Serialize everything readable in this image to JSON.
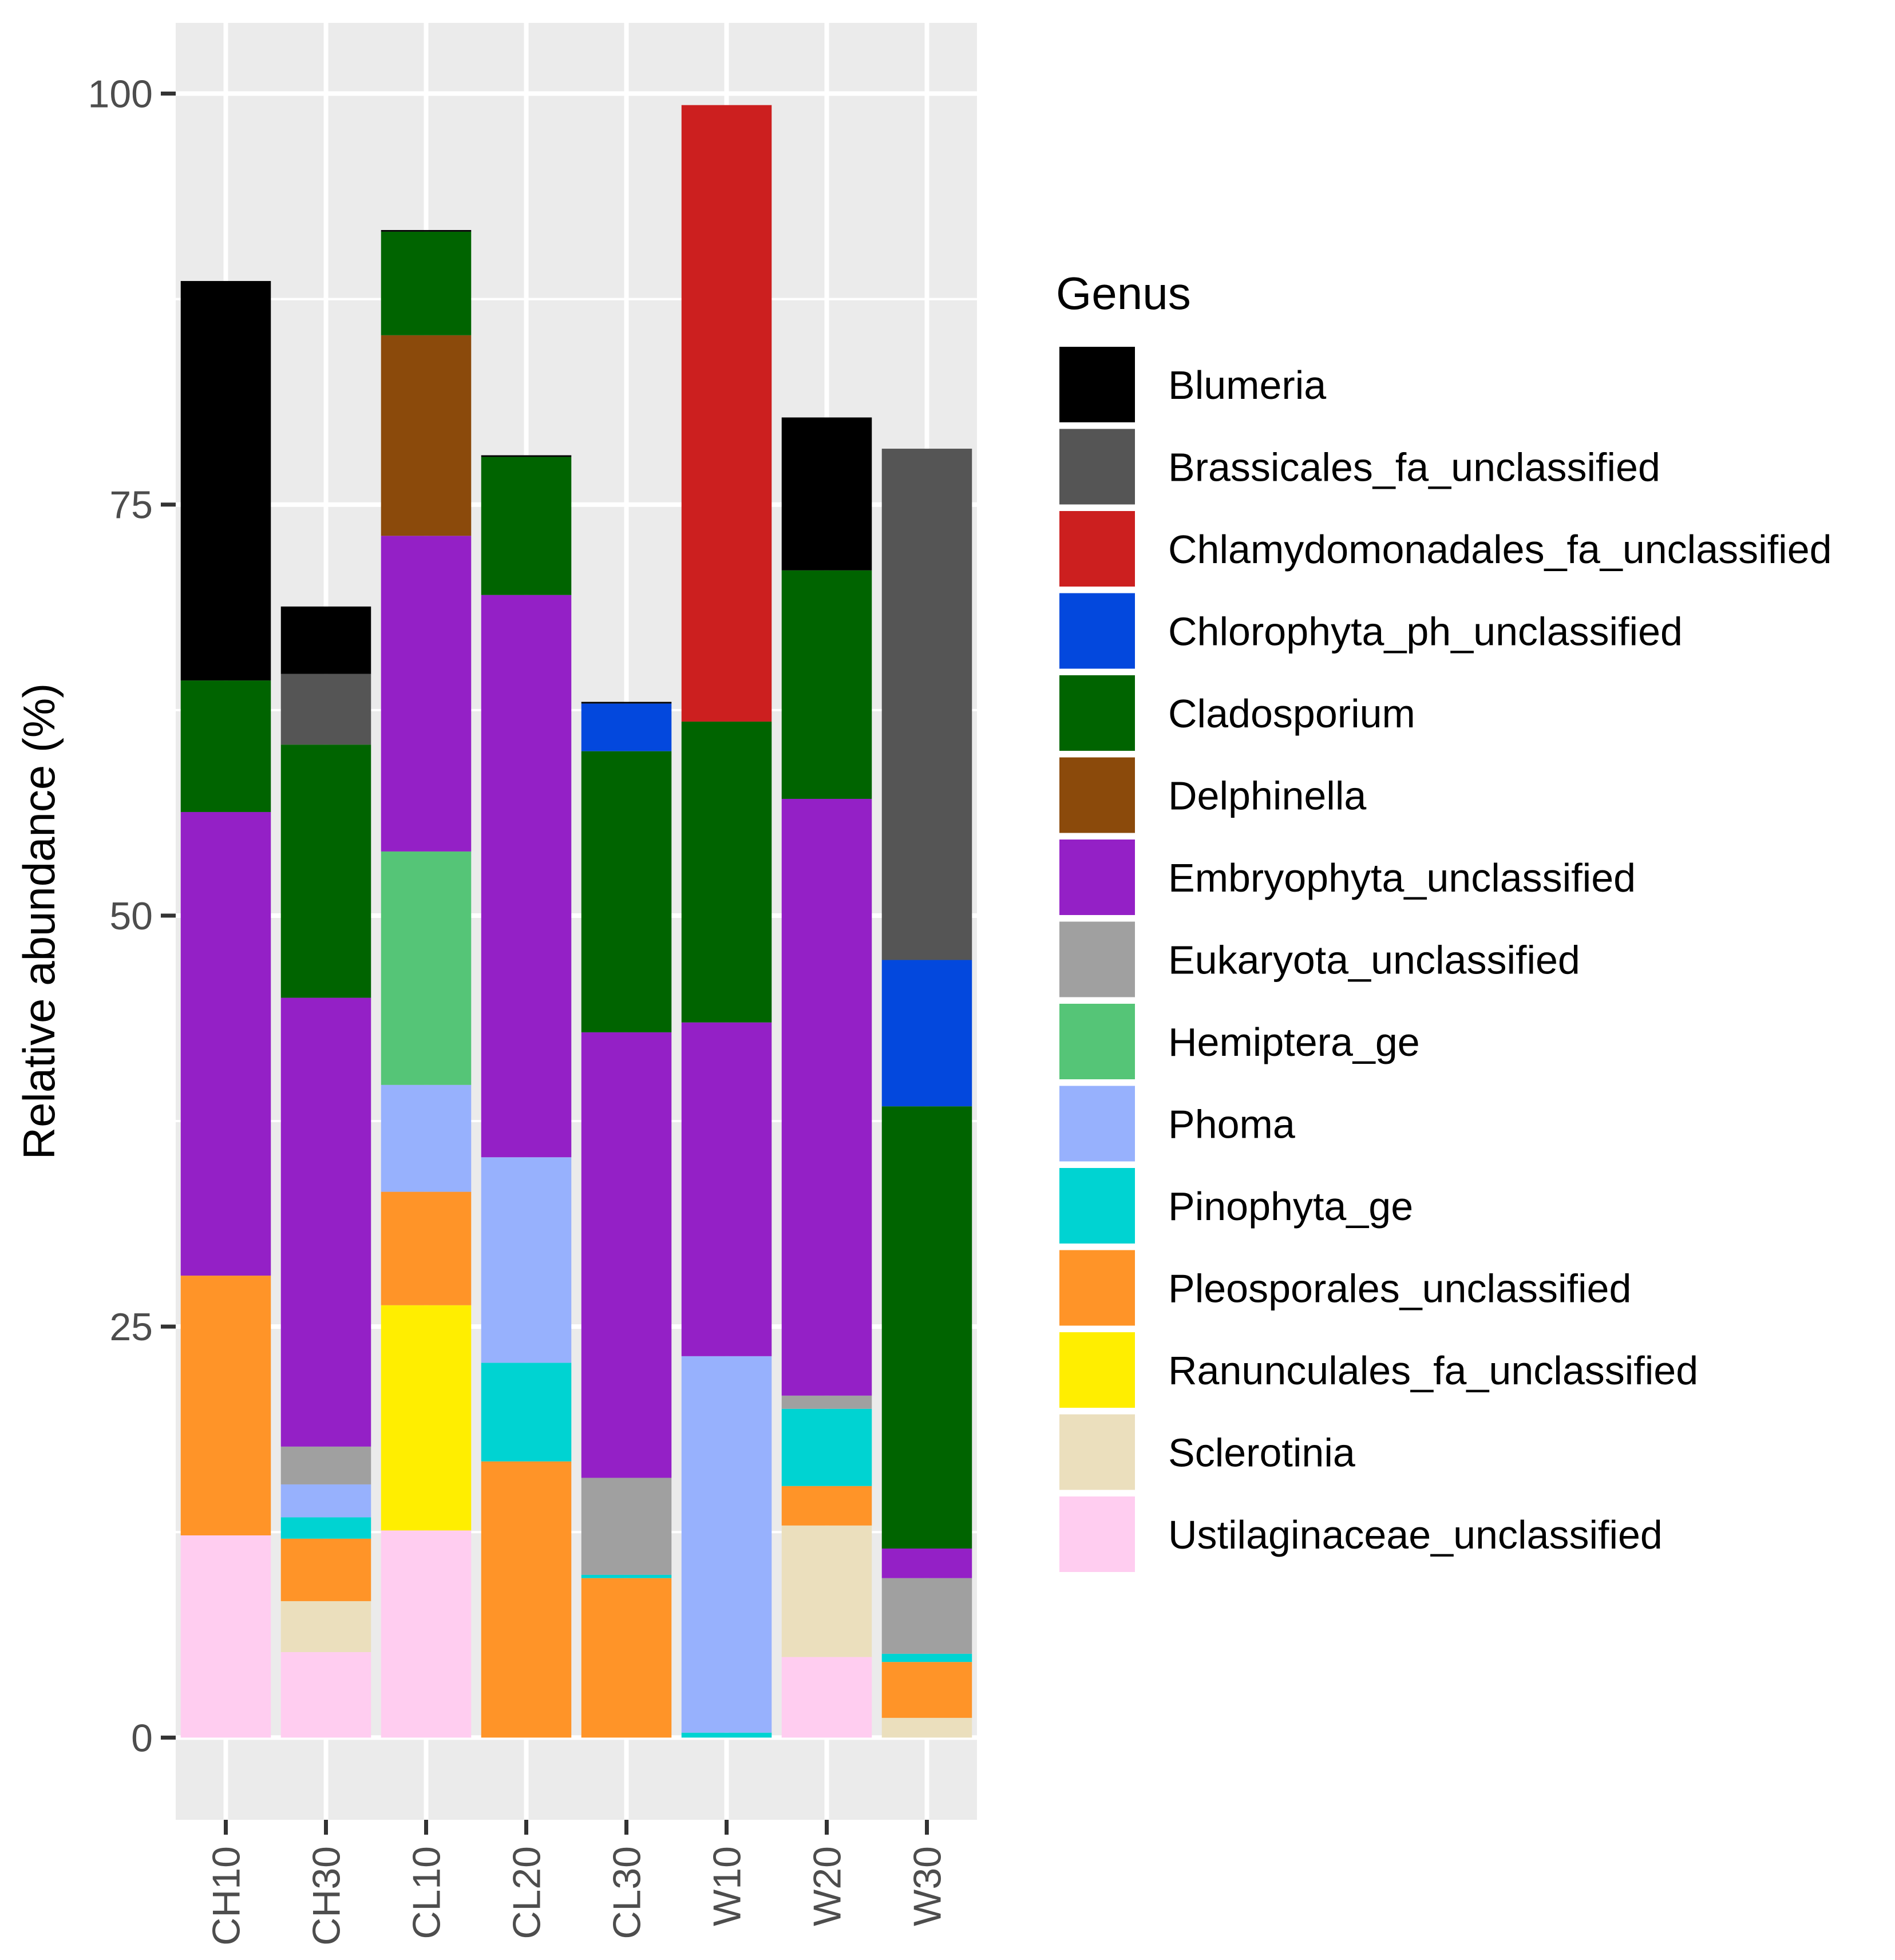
{
  "chart_data": {
    "type": "stacked-bar",
    "ylabel": "Relative abundance (%)",
    "xlabel": "",
    "ylim": [
      -5,
      104.3
    ],
    "yticks": [
      "0",
      "25",
      "50",
      "75",
      "100"
    ],
    "ytick_values": [
      0,
      25,
      50,
      75,
      100
    ],
    "categories": [
      "CH10",
      "CH30",
      "CL10",
      "CL20",
      "CL30",
      "W10",
      "W20",
      "W30"
    ],
    "legend": {
      "title": "Genus",
      "position": "right",
      "entries": [
        "Blumeria",
        "Brassicales_fa_unclassified",
        "Chlamydomonadales_fa_unclassified",
        "Chlorophyta_ph_unclassified",
        "Cladosporium",
        "Delphinella",
        "Embryophyta_unclassified",
        "Eukaryota_unclassified",
        "Hemiptera_ge",
        "Phoma",
        "Pinophyta_ge",
        "Pleosporales_unclassified",
        "Ranunculales_fa_unclassified",
        "Sclerotinia",
        "Ustilaginaceae_unclassified"
      ]
    },
    "colors": {
      "Blumeria": "#000000",
      "Brassicales_fa_unclassified": "#555555",
      "Chlamydomonadales_fa_unclassified": "#cc1f1f",
      "Chlorophyta_ph_unclassified": "#0348dd",
      "Cladosporium": "#006400",
      "Delphinella": "#8b4a0b",
      "Embryophyta_unclassified": "#9420c6",
      "Eukaryota_unclassified": "#a0a0a0",
      "Hemiptera_ge": "#55c577",
      "Phoma": "#97b1fd",
      "Pinophyta_ge": "#00d3d2",
      "Pleosporales_unclassified": "#ff9428",
      "Ranunculales_fa_unclassified": "#ffee00",
      "Sclerotinia": "#ebdfbd",
      "Ustilaginaceae_unclassified": "#ffcdf0"
    },
    "series": [
      {
        "name": "Ustilaginaceae_unclassified",
        "values": [
          12.3,
          5.2,
          12.6,
          0,
          0,
          0,
          4.9,
          0
        ]
      },
      {
        "name": "Sclerotinia",
        "values": [
          0,
          3.1,
          0,
          0,
          0,
          0,
          8.0,
          1.2
        ]
      },
      {
        "name": "Ranunculales_fa_unclassified",
        "values": [
          0,
          0,
          13.7,
          0,
          0,
          0,
          0,
          0
        ]
      },
      {
        "name": "Pleosporales_unclassified",
        "values": [
          15.8,
          3.8,
          6.9,
          16.8,
          9.7,
          0,
          2.4,
          3.4
        ]
      },
      {
        "name": "Pinophyta_ge",
        "values": [
          0,
          1.3,
          0,
          6.0,
          0.2,
          0.3,
          4.7,
          0.5
        ]
      },
      {
        "name": "Phoma",
        "values": [
          0,
          2.0,
          6.5,
          12.5,
          0,
          22.9,
          0,
          0
        ]
      },
      {
        "name": "Hemiptera_ge",
        "values": [
          0,
          0,
          14.2,
          0,
          0,
          0,
          0,
          0
        ]
      },
      {
        "name": "Eukaryota_unclassified",
        "values": [
          0,
          2.3,
          0,
          0,
          5.9,
          0,
          0.8,
          4.6
        ]
      },
      {
        "name": "Embryophyta_unclassified",
        "values": [
          28.2,
          27.3,
          19.2,
          34.2,
          27.1,
          20.3,
          36.3,
          1.8
        ]
      },
      {
        "name": "Delphinella",
        "values": [
          0,
          0,
          12.2,
          0,
          0,
          0,
          0,
          0
        ]
      },
      {
        "name": "Cladosporium",
        "values": [
          8.0,
          15.4,
          6.3,
          8.4,
          17.1,
          18.3,
          13.9,
          26.9
        ]
      },
      {
        "name": "Chlorophyta_ph_unclassified",
        "values": [
          0,
          0,
          0,
          0,
          2.9,
          0,
          0,
          8.9
        ]
      },
      {
        "name": "Chlamydomonadales_fa_unclassified",
        "values": [
          0,
          0,
          0,
          0,
          0,
          37.5,
          0,
          0
        ]
      },
      {
        "name": "Brassicales_fa_unclassified",
        "values": [
          0,
          4.3,
          0,
          0,
          0,
          0,
          0,
          31.1
        ]
      },
      {
        "name": "Blumeria",
        "values": [
          24.3,
          4.1,
          0.1,
          0.1,
          0.1,
          0,
          9.3,
          0
        ]
      }
    ]
  }
}
